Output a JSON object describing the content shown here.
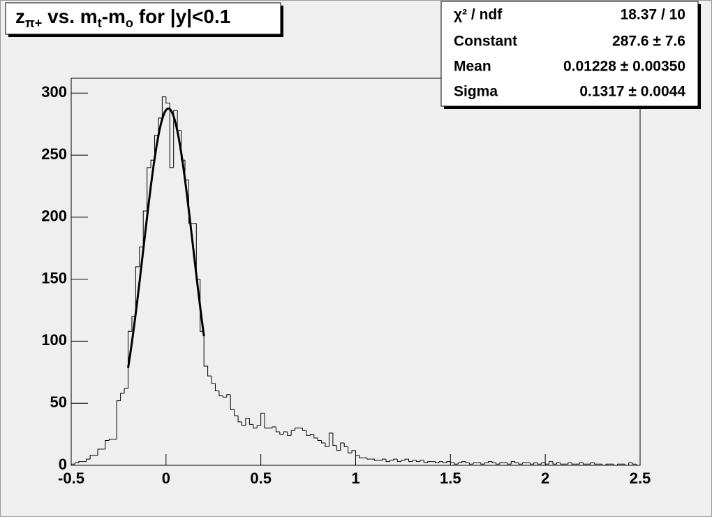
{
  "chart_data": {
    "type": "histogram",
    "title": [
      "z",
      "π+",
      " vs. m",
      "t",
      "-m",
      "o",
      " for |y|<0.1"
    ],
    "bins": [
      -0.5,
      -0.48,
      -0.46,
      -0.44,
      -0.42,
      -0.4,
      -0.38,
      -0.36,
      -0.34,
      -0.32,
      -0.3,
      -0.28,
      -0.26,
      -0.24,
      -0.22,
      -0.2,
      -0.18,
      -0.16,
      -0.14,
      -0.12,
      -0.1,
      -0.08,
      -0.06,
      -0.04,
      -0.02,
      0,
      0.02,
      0.04,
      0.06,
      0.08,
      0.1,
      0.12,
      0.14,
      0.16,
      0.18,
      0.2,
      0.22,
      0.24,
      0.26,
      0.28,
      0.3,
      0.32,
      0.34,
      0.36,
      0.38,
      0.4,
      0.42,
      0.44,
      0.46,
      0.48,
      0.5,
      0.52,
      0.54,
      0.56,
      0.58,
      0.6,
      0.62,
      0.64,
      0.66,
      0.68,
      0.7,
      0.72,
      0.74,
      0.76,
      0.78,
      0.8,
      0.82,
      0.84,
      0.86,
      0.88,
      0.9,
      0.92,
      0.94,
      0.96,
      0.98,
      1,
      1.02,
      1.04,
      1.06,
      1.08,
      1.1,
      1.12,
      1.14,
      1.16,
      1.18,
      1.2,
      1.22,
      1.24,
      1.26,
      1.28,
      1.3,
      1.32,
      1.34,
      1.36,
      1.38,
      1.4,
      1.42,
      1.44,
      1.46,
      1.48,
      1.5,
      1.52,
      1.54,
      1.56,
      1.58,
      1.6,
      1.62,
      1.64,
      1.66,
      1.68,
      1.7,
      1.72,
      1.74,
      1.76,
      1.78,
      1.8,
      1.82,
      1.84,
      1.86,
      1.88,
      1.9,
      1.92,
      1.94,
      1.96,
      1.98,
      2,
      2.02,
      2.04,
      2.06,
      2.08,
      2.1,
      2.12,
      2.14,
      2.16,
      2.18,
      2.2,
      2.22,
      2.24,
      2.26,
      2.28,
      2.3,
      2.32,
      2.34,
      2.36,
      2.38,
      2.4,
      2.42,
      2.44,
      2.46,
      2.48,
      2.5
    ],
    "values": [
      1,
      2,
      3,
      3,
      5,
      8,
      8,
      13,
      13,
      20,
      21,
      21,
      52,
      58,
      62,
      108,
      120,
      160,
      176,
      205,
      240,
      246,
      266,
      280,
      297,
      292,
      240,
      286,
      270,
      246,
      230,
      195,
      195,
      150,
      108,
      80,
      72,
      66,
      60,
      56,
      55,
      57,
      45,
      40,
      35,
      32,
      38,
      33,
      30,
      32,
      42,
      30,
      30,
      31,
      27,
      25,
      27,
      24,
      28,
      30,
      30,
      28,
      24,
      25,
      22,
      20,
      18,
      15,
      26,
      16,
      12,
      18,
      15,
      10,
      12,
      8,
      6,
      6,
      5,
      5,
      4,
      4,
      5,
      3,
      4,
      5,
      3,
      4,
      5,
      3,
      4,
      3,
      4,
      2,
      3,
      3,
      2,
      3,
      2,
      3,
      2,
      1,
      2,
      3,
      2,
      1,
      2,
      2,
      1,
      2,
      3,
      2,
      1,
      2,
      2,
      1,
      3,
      2,
      1,
      2,
      2,
      1,
      2,
      1,
      2,
      1,
      3,
      1,
      2,
      1,
      1,
      2,
      1,
      1,
      2,
      1,
      1,
      2,
      1,
      1,
      0,
      1,
      1,
      0,
      1,
      1,
      0,
      2,
      1,
      0
    ],
    "color": "#000000",
    "fit_range": [
      -0.2,
      0.2
    ],
    "fit_color": "#000000",
    "stats": [
      {
        "label": "χ² / ndf",
        "value_label": "18.37 / 10",
        "values": [
          18.37,
          10
        ]
      },
      {
        "label": "Constant",
        "value_label": "287.6 ± 7.6",
        "values": [
          287.6,
          7.6
        ]
      },
      {
        "label": "Mean",
        "value_label": "0.01228 ± 0.00350",
        "values": [
          0.01228,
          0.0035
        ]
      },
      {
        "label": "Sigma",
        "value_label": "0.1317 ± 0.0044",
        "values": [
          0.1317,
          0.0044
        ]
      }
    ],
    "xlim": [
      -0.5,
      2.5
    ],
    "xticks": [
      -0.5,
      0,
      0.5,
      1,
      1.5,
      2,
      2.5
    ],
    "ylim": [
      0,
      312
    ],
    "yticks": [
      0,
      50,
      100,
      150,
      200,
      250,
      300
    ]
  }
}
